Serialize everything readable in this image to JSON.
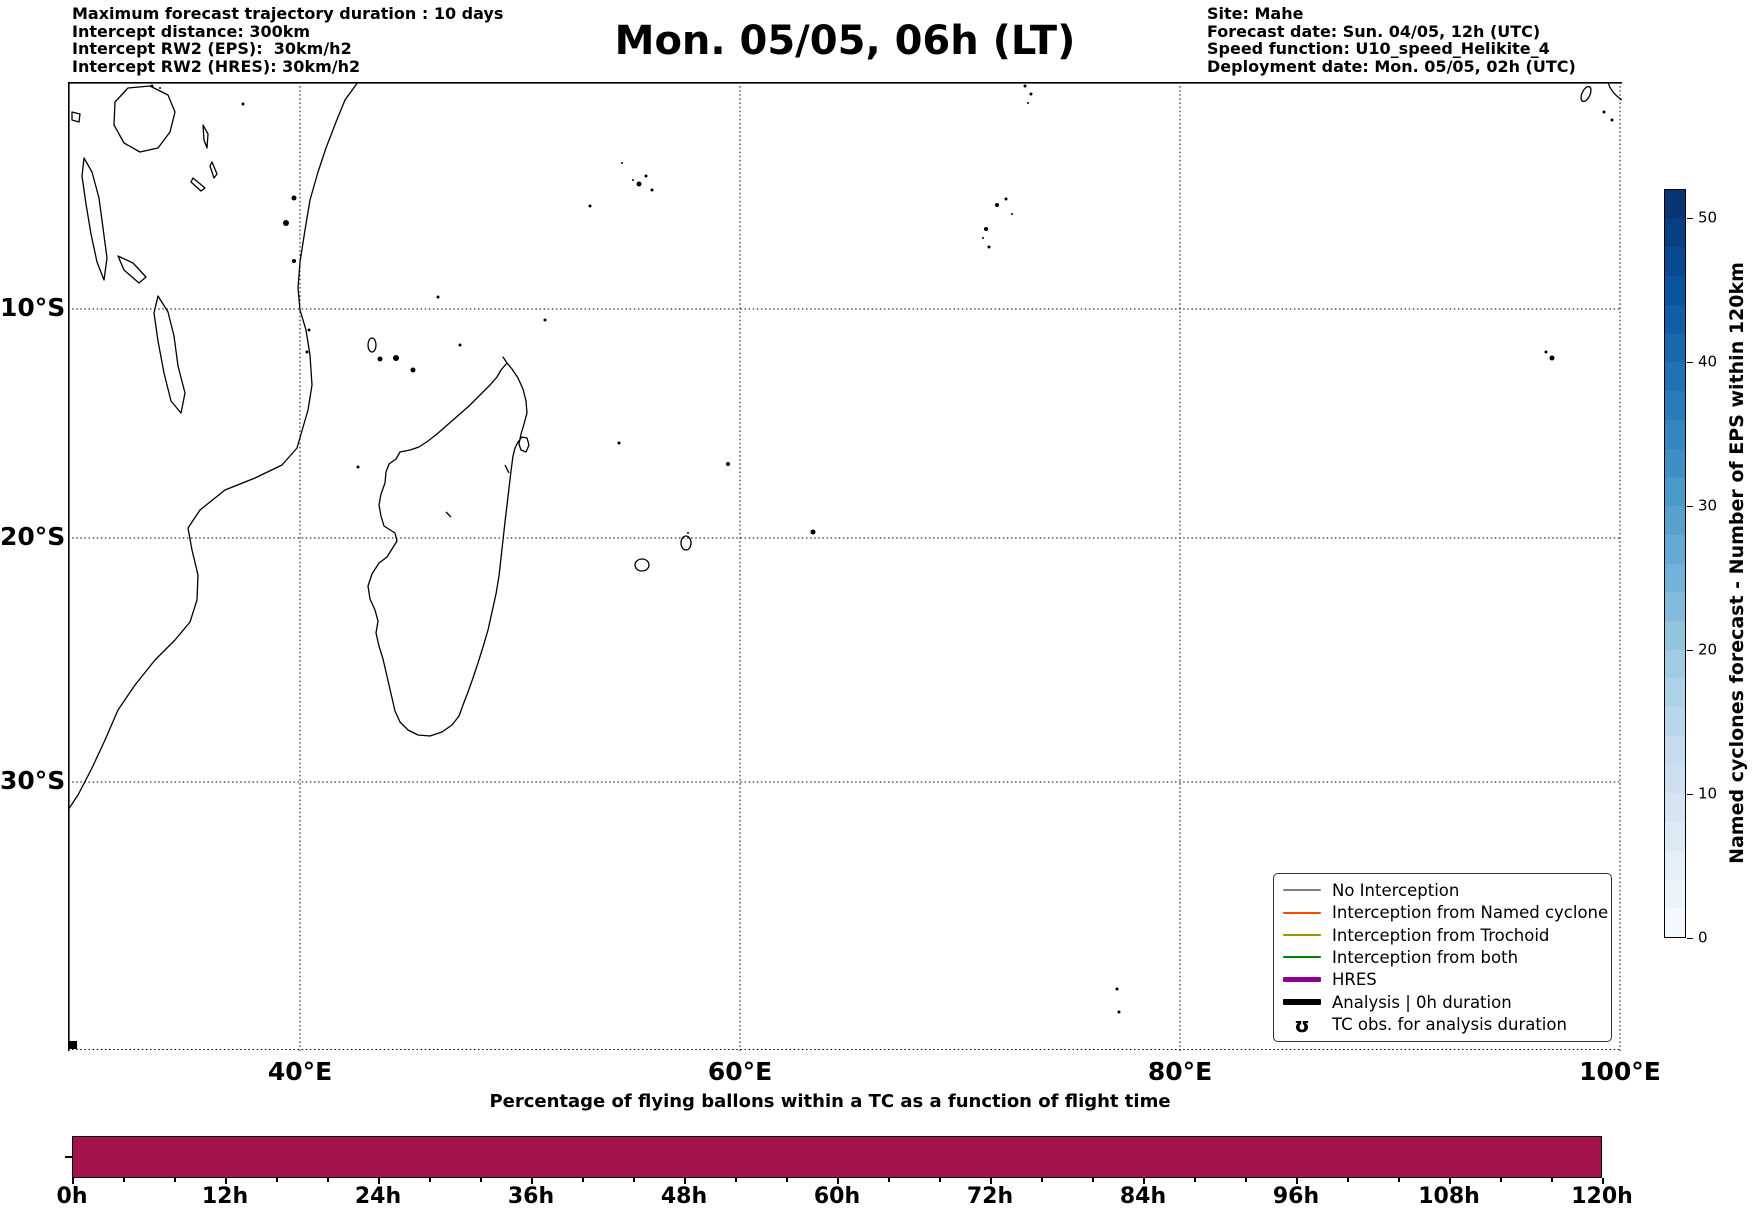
{
  "header_left": {
    "lines": [
      "Maximum forecast trajectory duration : 10 days",
      "Intercept distance: 300km",
      "Intercept RW2 (EPS):  30km/h2",
      "Intercept RW2 (HRES): 30km/h2"
    ]
  },
  "header_right": {
    "lines": [
      "Site: Mahe",
      "Forecast date: Sun. 04/05, 12h (UTC)",
      "Speed function: U10_speed_Helikite_4",
      "Deployment date: Mon. 05/05, 02h (UTC)"
    ]
  },
  "title": "Mon. 05/05, 06h (LT)",
  "map": {
    "x_tick_labels": [
      "40°E",
      "60°E",
      "80°E",
      "100°E"
    ],
    "y_tick_labels": [
      "10°S",
      "20°S",
      "30°S"
    ],
    "region": "Southwest Indian Ocean with East Africa and Madagascar coastlines",
    "gridline_style": "dotted black"
  },
  "colorbar": {
    "label": "Named cyclones forecast - Number of EPS within 120km",
    "tick_labels": [
      "0",
      "10",
      "20",
      "30",
      "40",
      "50"
    ],
    "tick_values": [
      0,
      10,
      20,
      30,
      40,
      50
    ],
    "vmin": 0,
    "vmax": 52,
    "segments": 26,
    "colormap": "Blues",
    "anchors": [
      [
        0.0,
        "#f7fbff"
      ],
      [
        0.125,
        "#deebf7"
      ],
      [
        0.25,
        "#c6dbef"
      ],
      [
        0.375,
        "#9ecae1"
      ],
      [
        0.5,
        "#6baed6"
      ],
      [
        0.625,
        "#4292c6"
      ],
      [
        0.75,
        "#2171b5"
      ],
      [
        0.875,
        "#08519c"
      ],
      [
        1.0,
        "#08306b"
      ]
    ]
  },
  "legend": {
    "items": [
      {
        "label": "No Interception",
        "kind": "line",
        "color": "#808080",
        "weight": 2
      },
      {
        "label": "Interception from Named cyclone",
        "kind": "line",
        "color": "#ff4500",
        "weight": 2
      },
      {
        "label": "Interception from Trochoid",
        "kind": "line",
        "color": "#979700",
        "weight": 2
      },
      {
        "label": "Interception from both",
        "kind": "line",
        "color": "#008000",
        "weight": 2
      },
      {
        "label": "HRES",
        "kind": "line",
        "color": "#8c008c",
        "weight": 5
      },
      {
        "label": "Analysis | 0h duration",
        "kind": "line",
        "color": "#000000",
        "weight": 6
      },
      {
        "label": "TC obs. for analysis duration",
        "kind": "marker",
        "color": "#000000",
        "glyph": "ʊ"
      }
    ]
  },
  "bottom_chart": {
    "title": "Percentage of flying ballons within a TC as a function of flight time",
    "x_tick_labels": [
      "0h",
      "12h",
      "24h",
      "36h",
      "48h",
      "60h",
      "72h",
      "84h",
      "96h",
      "108h",
      "120h"
    ],
    "bar_color": "#a3124d",
    "value_description": "bar at constant 100% height from 0h to 120h"
  },
  "chart_data": [
    {
      "type": "heatmap",
      "subtype": "geographic-map",
      "title": "Mon. 05/05, 06h (LT)",
      "x_ticks": [
        "40°E",
        "60°E",
        "80°E",
        "100°E"
      ],
      "y_ticks": [
        "10°S",
        "20°S",
        "30°S"
      ],
      "lon_range_deg_east": [
        29.5,
        100
      ],
      "lat_range_deg_south": [
        0,
        42
      ],
      "visible_land": [
        "East African coast",
        "Madagascar",
        "Comoros",
        "Seychelles",
        "Réunion",
        "Mauritius",
        "Rodrigues",
        "Chagos",
        "Cocos Islands",
        "Sumatra fragment",
        "African great lakes"
      ],
      "overlay_trajectories": "none visible",
      "colorbar_label": "Named cyclones forecast - Number of EPS within 120km",
      "colorbar_range": [
        0,
        52
      ],
      "colorbar_ticks": [
        0,
        10,
        20,
        30,
        40,
        50
      ]
    },
    {
      "type": "bar",
      "title": "Percentage of flying ballons within a TC as a function of flight time",
      "xlabel": "flight time",
      "categories": [
        "0h",
        "12h",
        "24h",
        "36h",
        "48h",
        "60h",
        "72h",
        "84h",
        "96h",
        "108h",
        "120h"
      ],
      "x_range_hours": [
        0,
        120
      ],
      "x_minor_tick_step_hours": 4,
      "values_percent": [
        100,
        100,
        100,
        100,
        100,
        100,
        100,
        100,
        100,
        100,
        100
      ],
      "bar_color": "#a3124d"
    }
  ]
}
